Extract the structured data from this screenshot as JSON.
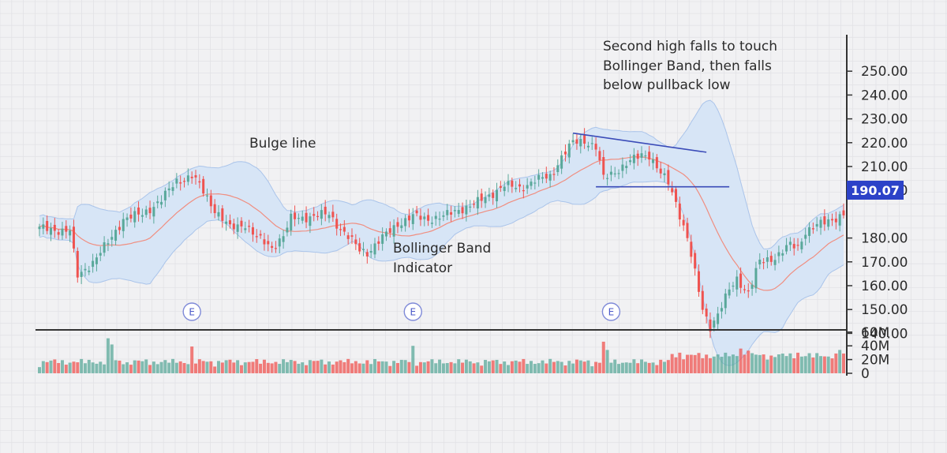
{
  "chart_data": {
    "type": "candlestick",
    "x_sessions": 212,
    "price_axis": {
      "ticks": [
        "250.00",
        "240.00",
        "230.00",
        "220.00",
        "210.00",
        "200.00",
        "180.00",
        "170.00",
        "160.00",
        "150.00",
        "140.00"
      ],
      "ylim": [
        135,
        255
      ]
    },
    "volume_axis": {
      "ticks": [
        "60M",
        "40M",
        "20M",
        "0"
      ],
      "ylim": [
        0,
        62
      ]
    },
    "last_price": {
      "label": "190.07",
      "value": 190.07
    },
    "annotations": {
      "bulge": "Bulge line",
      "indicator_line1": "Bollinger Band",
      "indicator_line2": "Indicator",
      "second_high_line1": "Second high falls to touch",
      "second_high_line2": "Bollinger Band, then falls",
      "second_high_line3": "below pullback low"
    },
    "earnings_markers": [
      {
        "label": "E",
        "x": 40
      },
      {
        "label": "E",
        "x": 98
      },
      {
        "label": "E",
        "x": 150
      }
    ],
    "trendline": {
      "x1": 140,
      "y1": 224,
      "x2": 175,
      "y2": 216
    },
    "pullback_line": {
      "x1": 146,
      "x2": 181,
      "y": 201.5
    },
    "anchors": [
      [
        0,
        184
      ],
      [
        8,
        183
      ],
      [
        10,
        164
      ],
      [
        14,
        170
      ],
      [
        18,
        178
      ],
      [
        22,
        188
      ],
      [
        27,
        190
      ],
      [
        32,
        196
      ],
      [
        36,
        204
      ],
      [
        40,
        206
      ],
      [
        42,
        202
      ],
      [
        46,
        192
      ],
      [
        50,
        184
      ],
      [
        54,
        186
      ],
      [
        57,
        180
      ],
      [
        61,
        176
      ],
      [
        64,
        181
      ],
      [
        66,
        188
      ],
      [
        71,
        189
      ],
      [
        76,
        190
      ],
      [
        79,
        184
      ],
      [
        84,
        175
      ],
      [
        86,
        174
      ],
      [
        90,
        180
      ],
      [
        94,
        186
      ],
      [
        98,
        189
      ],
      [
        102,
        188
      ],
      [
        106,
        189
      ],
      [
        110,
        192
      ],
      [
        114,
        194
      ],
      [
        118,
        198
      ],
      [
        122,
        202
      ],
      [
        126,
        201
      ],
      [
        130,
        204
      ],
      [
        134,
        206
      ],
      [
        137,
        214
      ],
      [
        140,
        220
      ],
      [
        143,
        221
      ],
      [
        146,
        218
      ],
      [
        148,
        205
      ],
      [
        151,
        208
      ],
      [
        155,
        212
      ],
      [
        158,
        215
      ],
      [
        160,
        215
      ],
      [
        163,
        207
      ],
      [
        165,
        203
      ],
      [
        167,
        195
      ],
      [
        170,
        180
      ],
      [
        172,
        165
      ],
      [
        174,
        150
      ],
      [
        176,
        143
      ],
      [
        178,
        148
      ],
      [
        181,
        158
      ],
      [
        183,
        163
      ],
      [
        186,
        157
      ],
      [
        189,
        170
      ],
      [
        193,
        172
      ],
      [
        197,
        177
      ],
      [
        199,
        176
      ],
      [
        201,
        183
      ],
      [
        211,
        190
      ]
    ],
    "colors": {
      "up": "#59a89a",
      "down": "#ef5350",
      "band": "#d7e5f6",
      "band_edge": "#aac4ea",
      "ma": "#f08e80",
      "line": "#3a4bb8",
      "price_box": "#2c42c8"
    }
  }
}
